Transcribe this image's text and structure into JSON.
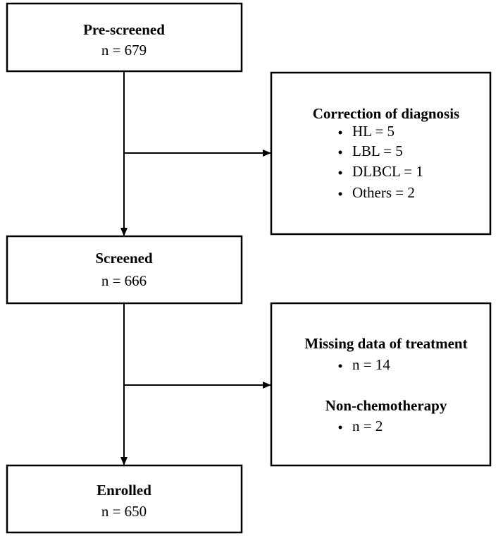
{
  "nodes": [
    {
      "title": "Pre-screened",
      "count": "n = 679"
    },
    {
      "title": "Screened",
      "count": "n = 666"
    },
    {
      "title": "Enrolled",
      "count": "n = 650"
    }
  ],
  "exclusions": [
    {
      "groups": [
        {
          "title": "Correction of diagnosis",
          "items": [
            "HL = 5",
            "LBL = 5",
            "DLBCL = 1",
            "Others = 2"
          ]
        }
      ]
    },
    {
      "groups": [
        {
          "title": "Missing data of treatment",
          "items": [
            "n = 14"
          ]
        },
        {
          "title": "Non-chemotherapy",
          "items": [
            "n = 2"
          ]
        }
      ]
    }
  ]
}
